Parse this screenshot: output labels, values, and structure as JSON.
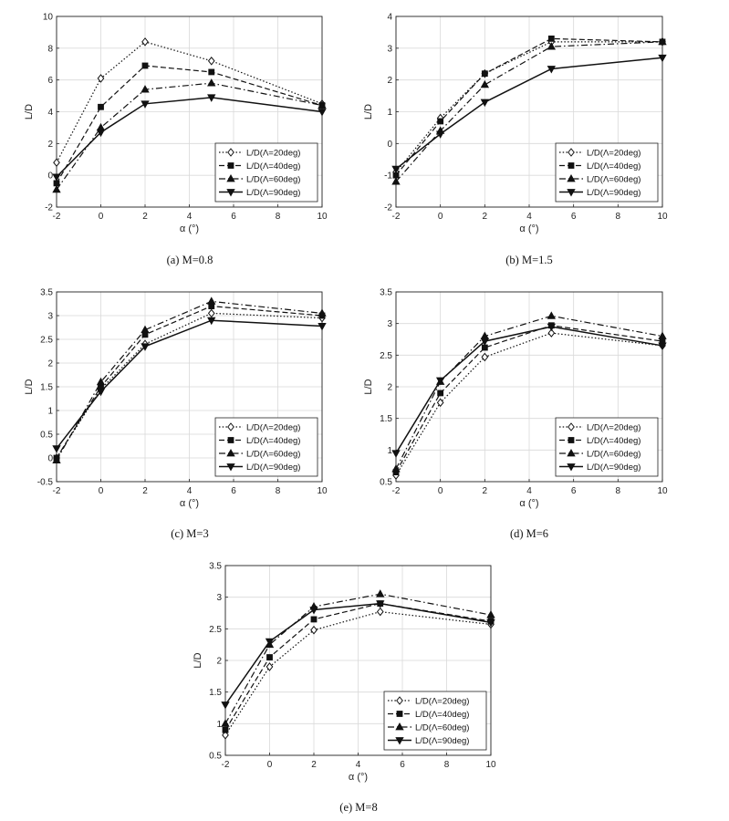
{
  "chart_data": [
    {
      "type": "line",
      "caption": "(a) M=0.8",
      "xlabel": "α (°)",
      "ylabel": "L/D",
      "xlim": [
        -2,
        10
      ],
      "ylim": [
        -2,
        10
      ],
      "xticks": [
        "-2",
        "0",
        "2",
        "4",
        "6",
        "8",
        "10"
      ],
      "yticks": [
        "-2",
        "0",
        "2",
        "4",
        "6",
        "8",
        "10"
      ],
      "grid": true,
      "legend_position": "bottom-right",
      "x": [
        -2,
        0,
        2,
        5,
        10
      ],
      "series": [
        {
          "name": "L/D(Λ=20deg)",
          "values": [
            0.8,
            6.1,
            8.4,
            7.2,
            4.5
          ]
        },
        {
          "name": "L/D(Λ=40deg)",
          "values": [
            -0.5,
            4.3,
            6.9,
            6.5,
            4.4
          ]
        },
        {
          "name": "L/D(Λ=60deg)",
          "values": [
            -0.9,
            3.0,
            5.4,
            5.8,
            4.4
          ]
        },
        {
          "name": "L/D(Λ=90deg)",
          "values": [
            -0.1,
            2.7,
            4.5,
            4.9,
            4.0
          ]
        }
      ]
    },
    {
      "type": "line",
      "caption": "(b) M=1.5",
      "xlabel": "α (°)",
      "ylabel": "L/D",
      "xlim": [
        -2,
        10
      ],
      "ylim": [
        -2,
        4
      ],
      "xticks": [
        "-2",
        "0",
        "2",
        "4",
        "6",
        "8",
        "10"
      ],
      "yticks": [
        "-2",
        "-1",
        "0",
        "1",
        "2",
        "3",
        "4"
      ],
      "grid": true,
      "legend_position": "bottom-right",
      "x": [
        -2,
        0,
        2,
        5,
        10
      ],
      "series": [
        {
          "name": "L/D(Λ=20deg)",
          "values": [
            -0.9,
            0.8,
            2.2,
            3.2,
            3.2
          ]
        },
        {
          "name": "L/D(Λ=40deg)",
          "values": [
            -1.0,
            0.7,
            2.2,
            3.3,
            3.2
          ]
        },
        {
          "name": "L/D(Λ=60deg)",
          "values": [
            -1.2,
            0.4,
            1.85,
            3.05,
            3.2
          ]
        },
        {
          "name": "L/D(Λ=90deg)",
          "values": [
            -0.8,
            0.3,
            1.3,
            2.35,
            2.7
          ]
        }
      ]
    },
    {
      "type": "line",
      "caption": "(c) M=3",
      "xlabel": "α (°)",
      "ylabel": "L/D",
      "xlim": [
        -2,
        10
      ],
      "ylim": [
        -0.5,
        3.5
      ],
      "xticks": [
        "-2",
        "0",
        "2",
        "4",
        "6",
        "8",
        "10"
      ],
      "yticks": [
        "-0.5",
        "0",
        "0.5",
        "1",
        "1.5",
        "2",
        "2.5",
        "3",
        "3.5"
      ],
      "grid": true,
      "legend_position": "bottom-right",
      "x": [
        -2,
        0,
        2,
        5,
        10
      ],
      "series": [
        {
          "name": "L/D(Λ=20deg)",
          "values": [
            0.0,
            1.45,
            2.4,
            3.05,
            2.95
          ]
        },
        {
          "name": "L/D(Λ=40deg)",
          "values": [
            0.0,
            1.5,
            2.6,
            3.2,
            3.0
          ]
        },
        {
          "name": "L/D(Λ=60deg)",
          "values": [
            -0.05,
            1.6,
            2.7,
            3.3,
            3.05
          ]
        },
        {
          "name": "L/D(Λ=90deg)",
          "values": [
            0.2,
            1.4,
            2.35,
            2.9,
            2.78
          ]
        }
      ]
    },
    {
      "type": "line",
      "caption": "(d) M=6",
      "xlabel": "α (°)",
      "ylabel": "L/D",
      "xlim": [
        -2,
        10
      ],
      "ylim": [
        0.5,
        3.5
      ],
      "xticks": [
        "-2",
        "0",
        "2",
        "4",
        "6",
        "8",
        "10"
      ],
      "yticks": [
        "0.5",
        "1",
        "1.5",
        "2",
        "2.5",
        "3",
        "3.5"
      ],
      "grid": true,
      "legend_position": "bottom-right",
      "x": [
        -2,
        0,
        2,
        5,
        10
      ],
      "series": [
        {
          "name": "L/D(Λ=20deg)",
          "values": [
            0.6,
            1.75,
            2.47,
            2.85,
            2.65
          ]
        },
        {
          "name": "L/D(Λ=40deg)",
          "values": [
            0.65,
            1.9,
            2.62,
            2.97,
            2.72
          ]
        },
        {
          "name": "L/D(Λ=60deg)",
          "values": [
            0.7,
            2.08,
            2.8,
            3.12,
            2.8
          ]
        },
        {
          "name": "L/D(Λ=90deg)",
          "values": [
            0.95,
            2.1,
            2.72,
            2.95,
            2.65
          ]
        }
      ]
    },
    {
      "type": "line",
      "caption": "(e) M=8",
      "xlabel": "α (°)",
      "ylabel": "L/D",
      "xlim": [
        -2,
        10
      ],
      "ylim": [
        0.5,
        3.5
      ],
      "xticks": [
        "-2",
        "0",
        "2",
        "4",
        "6",
        "8",
        "10"
      ],
      "yticks": [
        "0.5",
        "1",
        "1.5",
        "2",
        "2.5",
        "3",
        "3.5"
      ],
      "grid": true,
      "legend_position": "bottom-right",
      "x": [
        -2,
        0,
        2,
        5,
        10
      ],
      "series": [
        {
          "name": "L/D(Λ=20deg)",
          "values": [
            0.82,
            1.9,
            2.48,
            2.77,
            2.57
          ]
        },
        {
          "name": "L/D(Λ=40deg)",
          "values": [
            0.9,
            2.05,
            2.65,
            2.9,
            2.62
          ]
        },
        {
          "name": "L/D(Λ=60deg)",
          "values": [
            1.0,
            2.25,
            2.85,
            3.05,
            2.72
          ]
        },
        {
          "name": "L/D(Λ=90deg)",
          "values": [
            1.3,
            2.3,
            2.8,
            2.9,
            2.6
          ]
        }
      ]
    }
  ]
}
